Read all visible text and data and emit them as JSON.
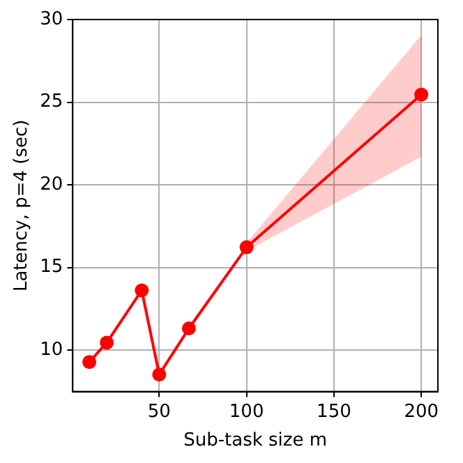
{
  "chart_data": {
    "type": "line",
    "xlabel": "Sub-task size m",
    "ylabel": "Latency, p=4 (sec)",
    "x": [
      10,
      20,
      40,
      50,
      67,
      100,
      200
    ],
    "series": [
      {
        "color": "#ff0000",
        "values": [
          9.29,
          10.46,
          13.62,
          8.53,
          11.32,
          16.23,
          25.46
        ],
        "lower": [
          null,
          null,
          null,
          null,
          null,
          16.0,
          21.7
        ],
        "upper": [
          null,
          null,
          null,
          null,
          null,
          16.5,
          29.05
        ]
      }
    ],
    "xlim": [
      0.5,
      209.5
    ],
    "xticks": [
      50,
      100,
      150,
      200
    ],
    "ylim": [
      7.5,
      30
    ],
    "yticks": [
      10,
      15,
      20,
      25,
      30
    ],
    "grid": true,
    "marker": "circle",
    "line_style": "solid",
    "legend": false
  }
}
